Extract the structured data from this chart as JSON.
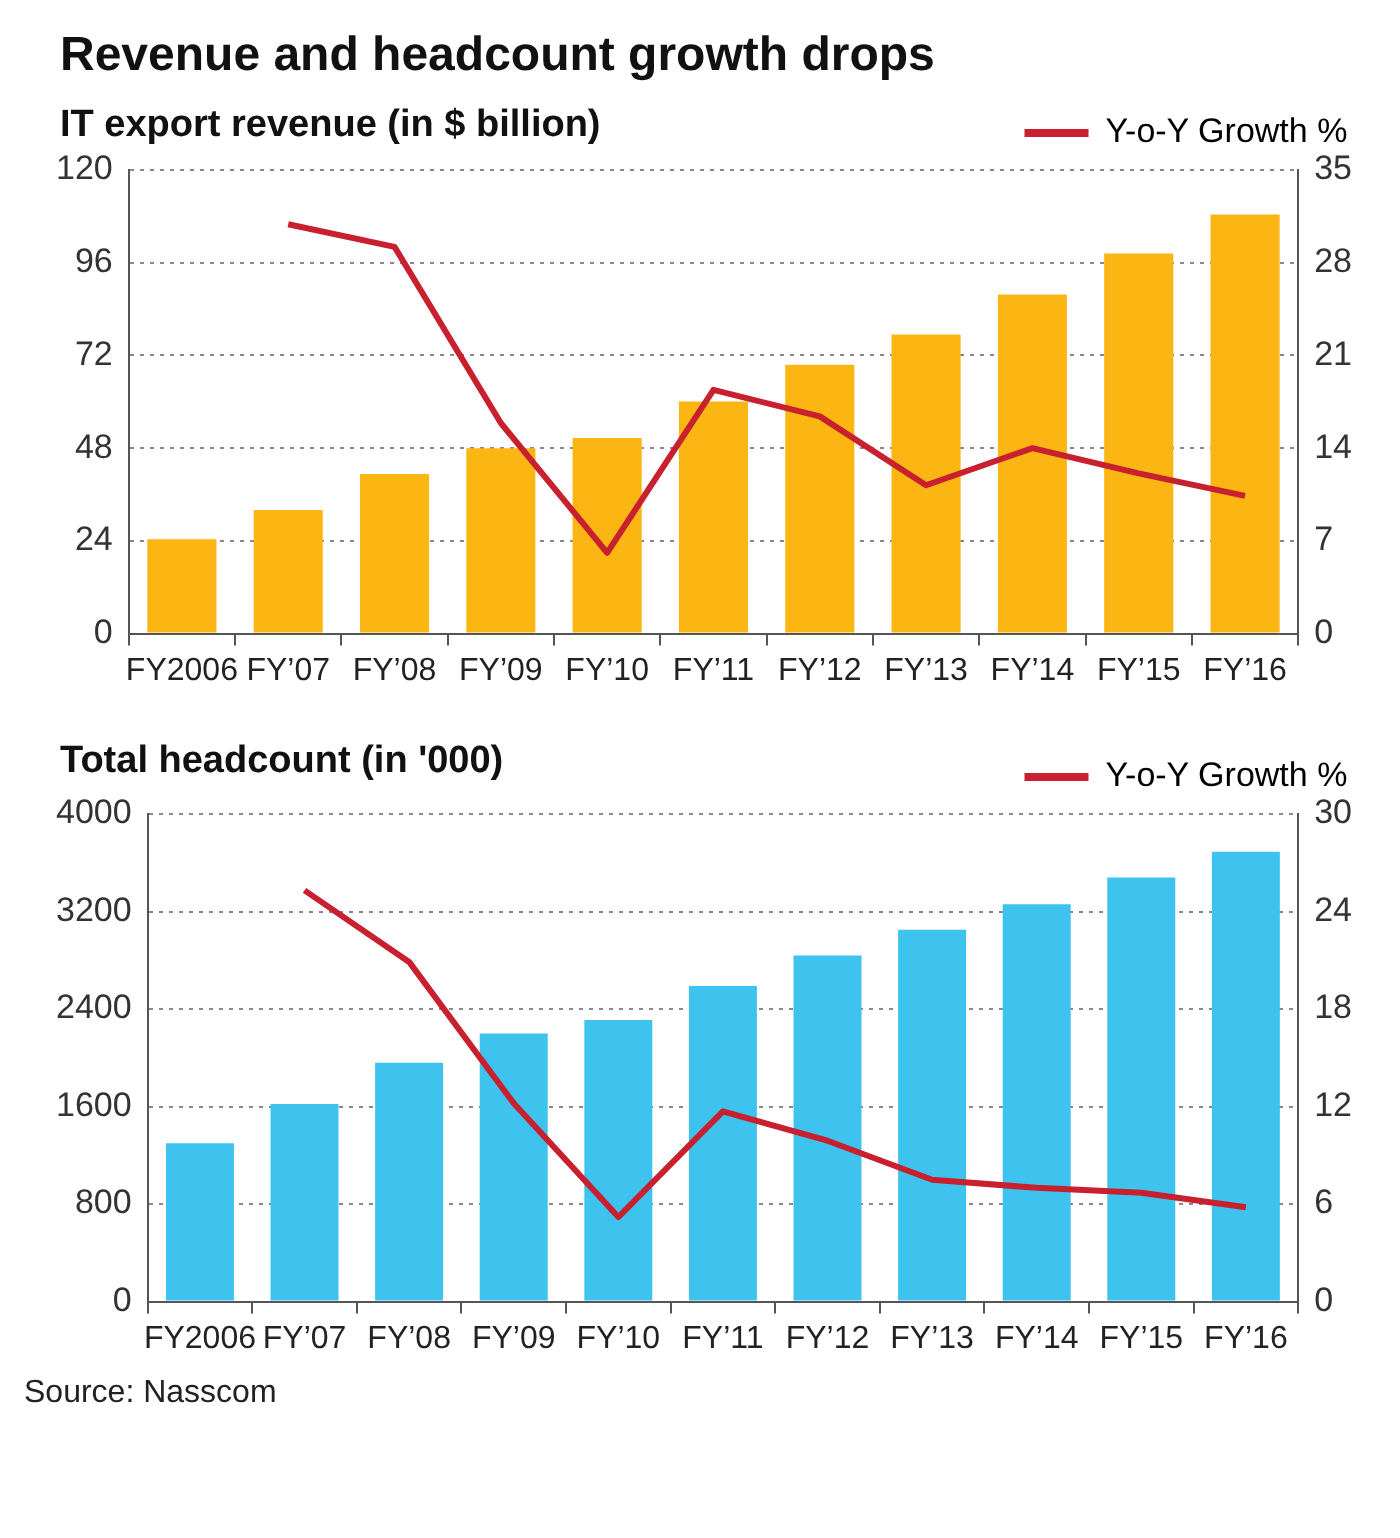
{
  "chart_data": [
    {
      "type": "bar",
      "title": "Revenue and headcount growth drops",
      "subtitle": "IT export revenue (in $ billion)",
      "categories": [
        "FY2006",
        "FY’07",
        "FY’08",
        "FY’09",
        "FY’10",
        "FY’11",
        "FY’12",
        "FY’13",
        "FY’14",
        "FY’15",
        "FY’16"
      ],
      "series": [
        {
          "color": "#fbb614",
          "values": [
            24.4,
            32,
            41.3,
            48,
            50.6,
            60.1,
            69.6,
            77.4,
            87.8,
            98.4,
            108.5
          ]
        },
        {
          "type": "line",
          "name": "Y-o-Y Growth %",
          "axis": "y2",
          "color": "#c8202e",
          "values": [
            null,
            30.9,
            29.2,
            15.9,
            6.1,
            18.4,
            16.4,
            11.2,
            14.0,
            12.1,
            10.4
          ]
        }
      ],
      "ylim": [
        0,
        120
      ],
      "yticks": [
        0,
        24,
        48,
        72,
        96,
        120
      ],
      "y2lim": [
        0,
        35
      ],
      "y2ticks": [
        0,
        7,
        14,
        21,
        28,
        35
      ],
      "grid": "y",
      "legend": "top right"
    },
    {
      "type": "bar",
      "subtitle": "Total headcount (in '000)",
      "categories": [
        "FY2006",
        "FY’07",
        "FY’08",
        "FY’09",
        "FY’10",
        "FY’11",
        "FY’12",
        "FY’13",
        "FY’14",
        "FY’15",
        "FY’16"
      ],
      "series": [
        {
          "color": "#3ec3ef",
          "values": [
            1300,
            1620,
            1960,
            2200,
            2310,
            2590,
            2840,
            3050,
            3260,
            3480,
            3690
          ]
        },
        {
          "type": "line",
          "name": "Y-o-Y Growth %",
          "axis": "y2",
          "color": "#c8202e",
          "values": [
            null,
            25.3,
            20.9,
            12.2,
            5.2,
            11.7,
            9.9,
            7.5,
            7.0,
            6.7,
            5.8
          ]
        }
      ],
      "ylim": [
        0,
        4000
      ],
      "yticks": [
        0,
        800,
        1600,
        2400,
        3200,
        4000
      ],
      "y2lim": [
        0,
        30
      ],
      "y2ticks": [
        0,
        6,
        12,
        18,
        24,
        30
      ],
      "grid": "y",
      "legend": "top right",
      "annotations": [
        "Source: Nasscom"
      ]
    }
  ]
}
